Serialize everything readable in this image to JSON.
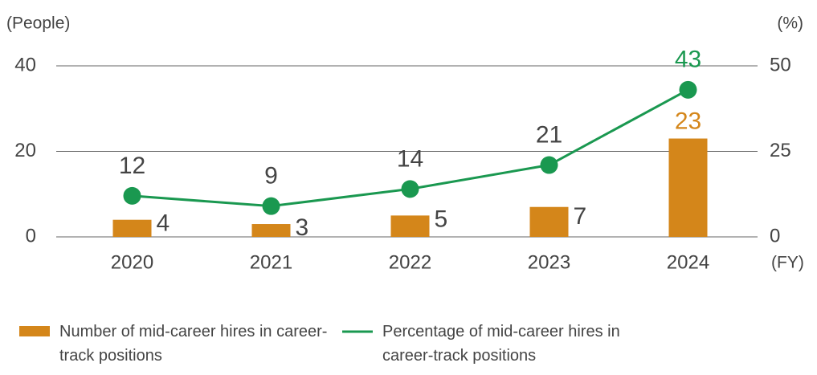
{
  "chart_data": {
    "type": "bar_line",
    "y_label": "(People)",
    "y2_label": "(%)",
    "x_label": "(FY)",
    "categories": [
      "2020",
      "2021",
      "2022",
      "2023",
      "2024"
    ],
    "series": [
      {
        "name": "Number of mid-career hires in career-track positions",
        "type": "bar",
        "color": "#d4861a",
        "values": [
          4,
          3,
          5,
          7,
          23
        ]
      },
      {
        "name": "Percentage of mid-career hires in career-track positions",
        "type": "line",
        "axis": "y2",
        "color": "#1a9850",
        "values": [
          12,
          9,
          14,
          21,
          43
        ]
      }
    ],
    "ylim": [
      0,
      40
    ],
    "yticks": [
      0,
      20,
      40
    ],
    "y2lim": [
      0,
      50
    ],
    "y2ticks": [
      0,
      25,
      50
    ],
    "grid": true
  }
}
